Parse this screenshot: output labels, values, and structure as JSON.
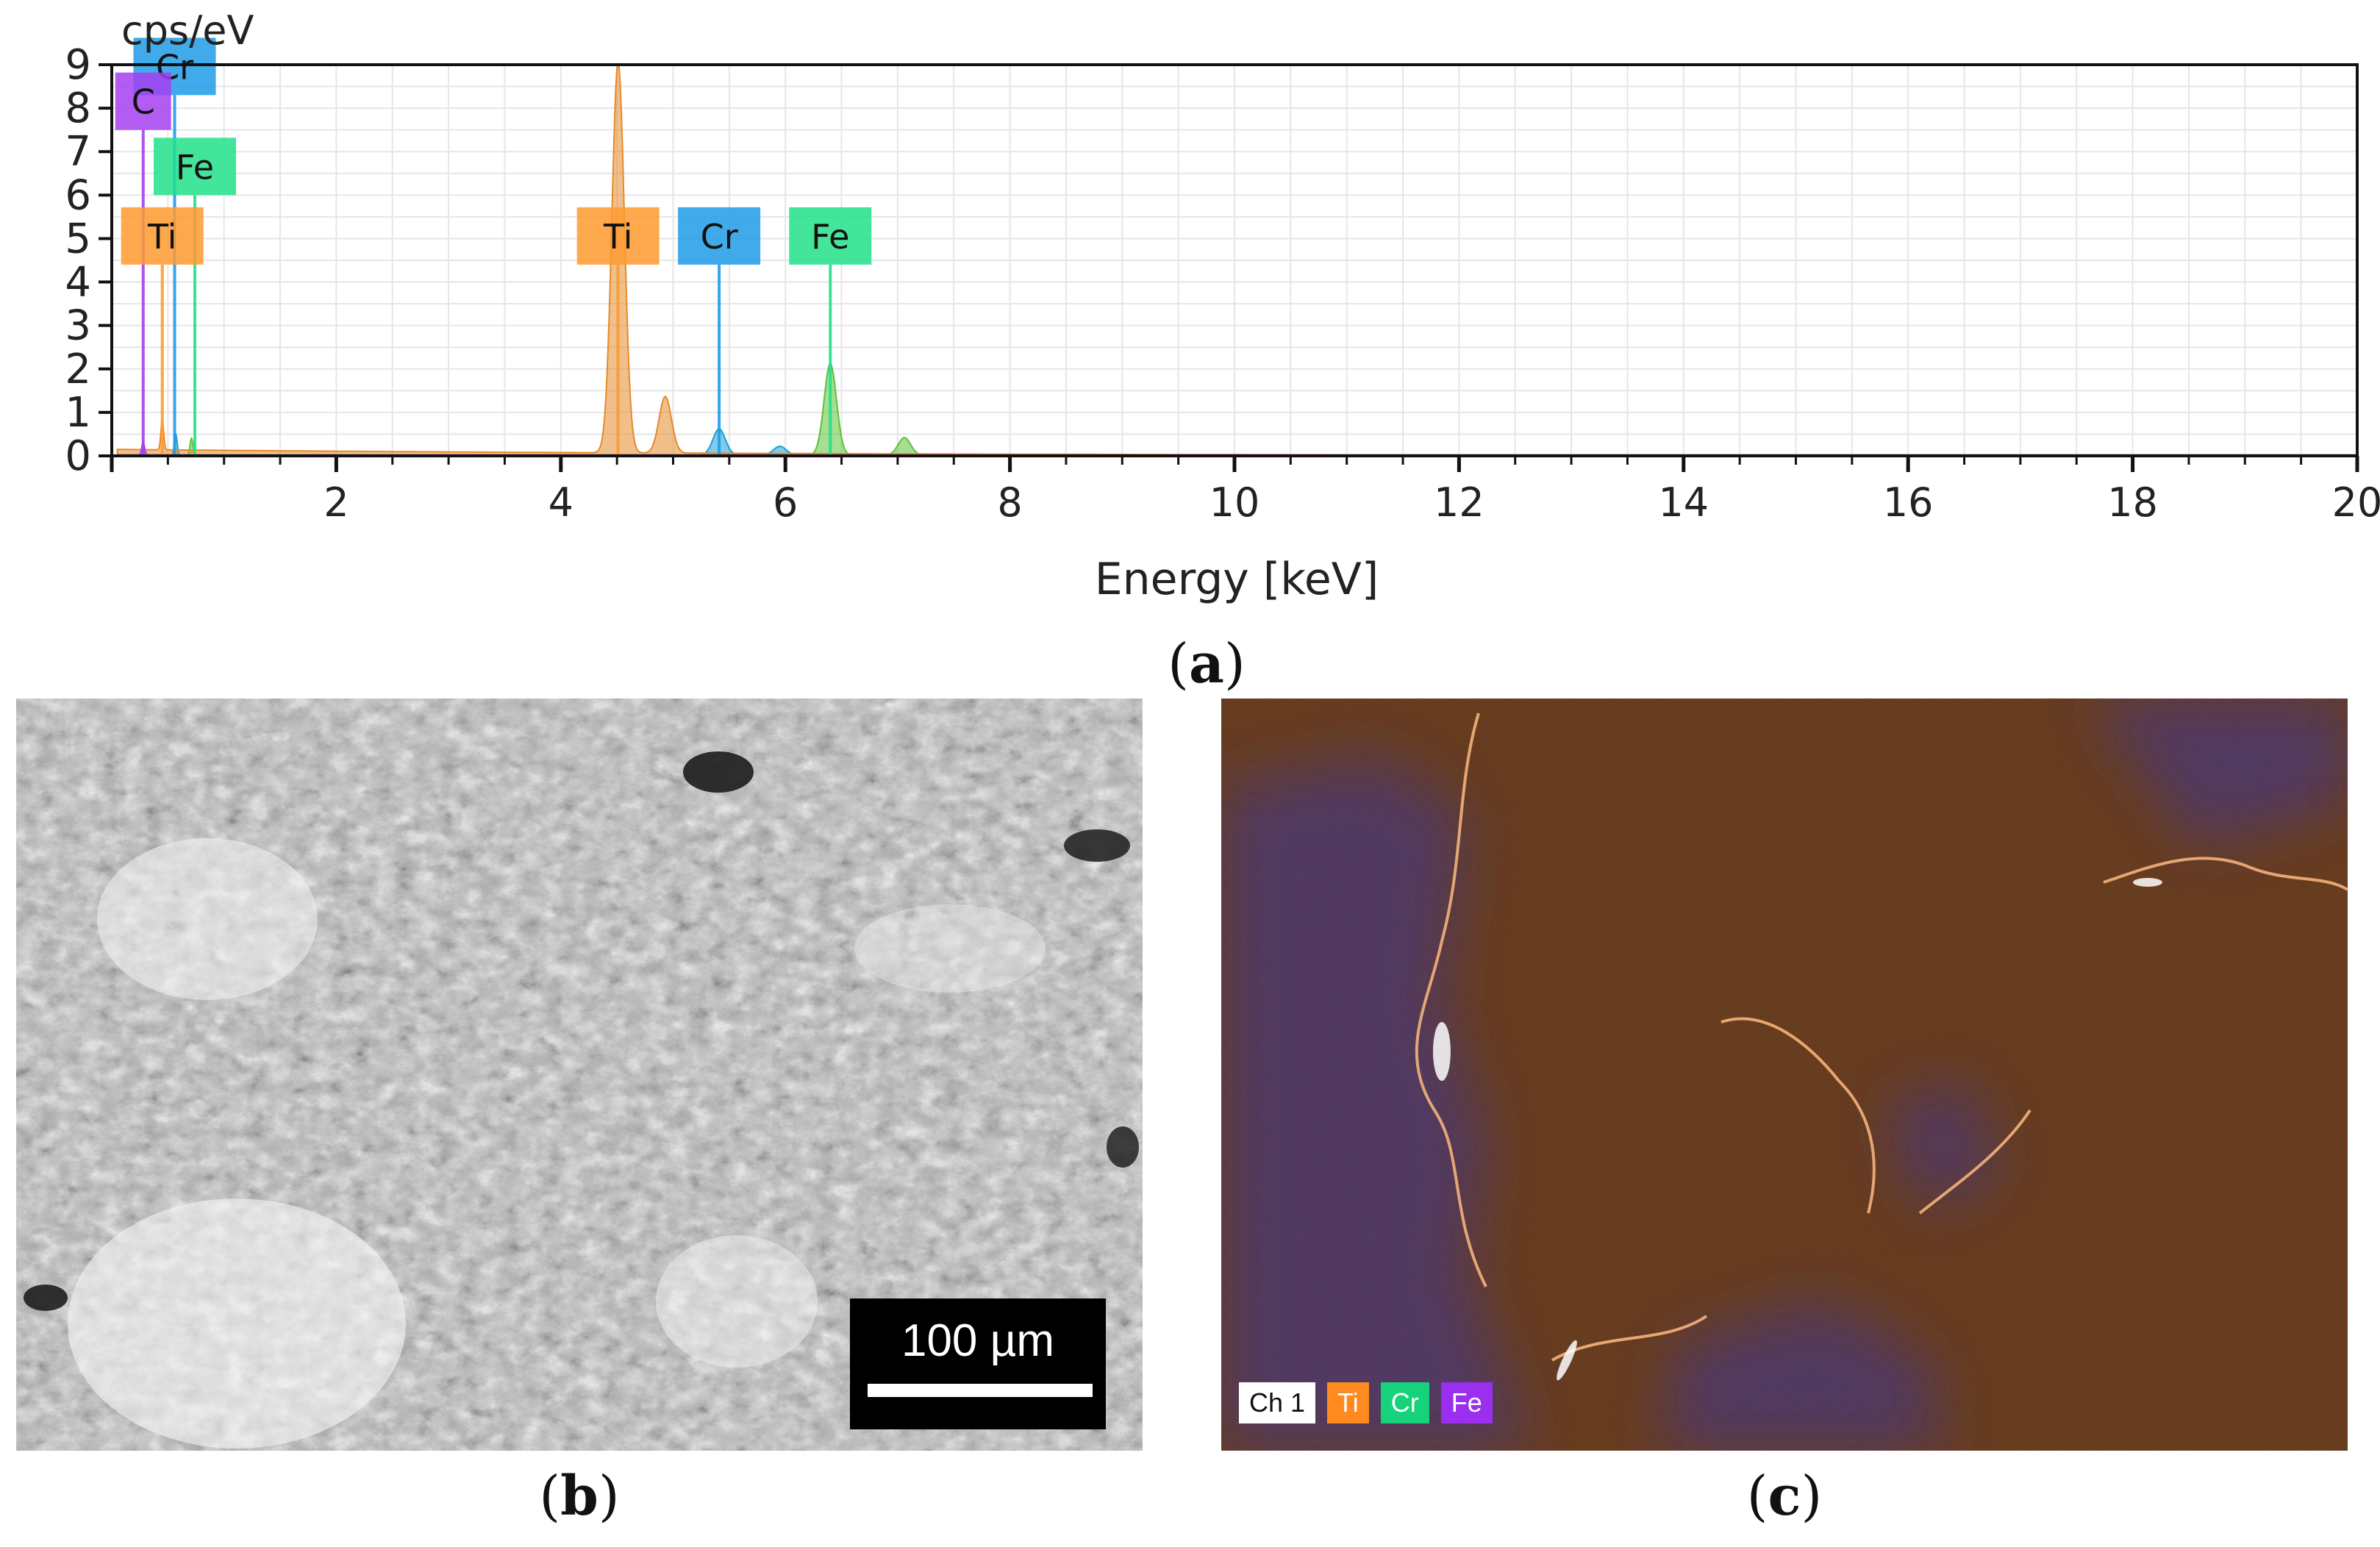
{
  "chart_data": {
    "type": "area",
    "ylabel": "cps/eV",
    "xlabel": "Energy [keV]",
    "xlim": [
      0,
      20
    ],
    "ylim": [
      0,
      9
    ],
    "x_ticks": [
      "2",
      "4",
      "6",
      "8",
      "10",
      "12",
      "14",
      "16",
      "18",
      "20"
    ],
    "y_ticks": [
      "0",
      "1",
      "2",
      "3",
      "4",
      "5",
      "6",
      "7",
      "8",
      "9"
    ],
    "grid": "on",
    "peaks": [
      {
        "element": "C",
        "energy": 0.28,
        "height": 0.3
      },
      {
        "element": "Ti",
        "energy": 0.45,
        "height": 0.7
      },
      {
        "element": "Cr",
        "energy": 0.57,
        "height": 0.5
      },
      {
        "element": "Fe",
        "energy": 0.71,
        "height": 0.4
      },
      {
        "element": "Ti",
        "energy": 4.51,
        "height": 9.0
      },
      {
        "element": "Ti",
        "energy": 4.93,
        "height": 1.3
      },
      {
        "element": "Cr",
        "energy": 5.41,
        "height": 0.6
      },
      {
        "element": "Cr",
        "energy": 5.95,
        "height": 0.2
      },
      {
        "element": "Fe",
        "energy": 6.4,
        "height": 2.1
      },
      {
        "element": "Fe",
        "energy": 7.06,
        "height": 0.4
      }
    ],
    "background_level": 0.15,
    "annotations": [
      {
        "text": "Cr",
        "energy": 0.56,
        "y": 8.3,
        "line_to": 3.5,
        "color": "#1e9be8"
      },
      {
        "text": "C",
        "energy": 0.28,
        "y": 7.5,
        "line_to": 3.5,
        "color": "#a43ff0"
      },
      {
        "text": "Fe",
        "energy": 0.74,
        "y": 6.0,
        "line_to": 3.7,
        "color": "#22e08a"
      },
      {
        "text": "Ti",
        "energy": 0.45,
        "y": 4.4,
        "line_to": 3.5,
        "color": "#ff9a30"
      },
      {
        "text": "Ti",
        "energy": 4.51,
        "y": 4.4,
        "line_to": 4.4,
        "color": "#ff9a30"
      },
      {
        "text": "Cr",
        "energy": 5.41,
        "y": 4.4,
        "line_to": 0.3,
        "color": "#1e9be8"
      },
      {
        "text": "Fe",
        "energy": 6.4,
        "y": 4.4,
        "line_to": 2.0,
        "color": "#22e08a"
      }
    ]
  },
  "panels": {
    "a": "a",
    "b": "b",
    "c": "c"
  },
  "scale_bar": {
    "label": "100 µm"
  },
  "map_legend": [
    {
      "label": "Ch 1",
      "color": "#ffffff",
      "text_color": "#111111"
    },
    {
      "label": "Ti",
      "color": "#ff8a1f",
      "text_color": "#ffffff"
    },
    {
      "label": "Cr",
      "color": "#16d27a",
      "text_color": "#ffffff"
    },
    {
      "label": "Fe",
      "color": "#9b2ff0",
      "text_color": "#ffffff"
    }
  ],
  "colors": {
    "ti": "#e58a2a",
    "cr": "#1aa0d8",
    "fe": "#5cc23a",
    "map_background": "#5a2f16",
    "map_region": "#3b2a74"
  }
}
